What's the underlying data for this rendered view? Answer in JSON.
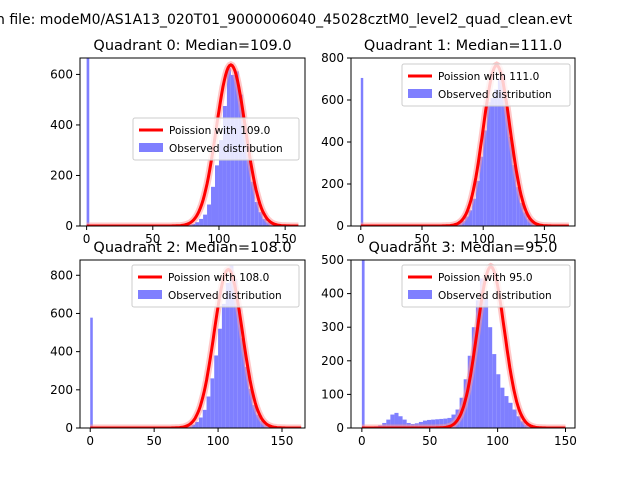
{
  "figure": {
    "suptitle": "n file: modeM0/AS1A13_020T01_9000006040_45028cztM0_level2_quad_clean.evt"
  },
  "colors": {
    "hist": "#7f7fff",
    "fit": "#ff0000",
    "fit_highlight": "#ff9999"
  },
  "chart_data": [
    {
      "type": "bar",
      "title": "Quadrant 0: Median=109.0",
      "xlim": [
        -5,
        165
      ],
      "ylim": [
        0,
        665
      ],
      "xticks": [
        0,
        50,
        100,
        150
      ],
      "yticks": [
        0,
        200,
        400,
        600
      ],
      "legend": {
        "position": "center-right",
        "fit_label": "Poission with 109.0",
        "hist_label": "Observed distribution"
      },
      "poisson_mean": 109.0,
      "poisson_peak": 638,
      "poisson_sigma": 11,
      "poisson_xrange": [
        0,
        160
      ],
      "spike": {
        "x": 0,
        "value": 665
      },
      "bins": {
        "start": 70,
        "width": 3,
        "values": [
          2,
          4,
          5,
          8,
          15,
          28,
          45,
          85,
          155,
          240,
          340,
          475,
          625,
          598,
          612,
          520,
          405,
          285,
          175,
          95,
          55,
          28,
          15,
          8,
          4,
          2
        ]
      }
    },
    {
      "type": "bar",
      "title": "Quadrant 1: Median=111.0",
      "xlim": [
        -8,
        175
      ],
      "ylim": [
        0,
        800
      ],
      "xticks": [
        0,
        50,
        100,
        150
      ],
      "yticks": [
        0,
        200,
        400,
        600,
        800
      ],
      "legend": {
        "position": "top-right",
        "fit_label": "Poission with 111.0",
        "hist_label": "Observed distribution"
      },
      "poisson_mean": 111.0,
      "poisson_peak": 765,
      "poisson_sigma": 11,
      "poisson_xrange": [
        0,
        170
      ],
      "spike": {
        "x": 0,
        "value": 705
      },
      "bins": {
        "start": 70,
        "width": 3,
        "values": [
          3,
          5,
          8,
          14,
          25,
          45,
          75,
          130,
          215,
          330,
          455,
          590,
          610,
          650,
          705,
          720,
          560,
          425,
          290,
          185,
          110,
          65,
          35,
          18,
          9,
          5,
          3,
          2
        ]
      }
    },
    {
      "type": "bar",
      "title": "Quadrant 2: Median=108.0",
      "xlim": [
        -8,
        168
      ],
      "ylim": [
        0,
        880
      ],
      "xticks": [
        0,
        50,
        100,
        150
      ],
      "yticks": [
        0,
        200,
        400,
        600,
        800
      ],
      "legend": {
        "position": "top-right",
        "fit_label": "Poission with 108.0",
        "hist_label": "Observed distribution"
      },
      "poisson_mean": 108.0,
      "poisson_peak": 830,
      "poisson_sigma": 11,
      "poisson_xrange": [
        0,
        165
      ],
      "spike": {
        "x": 0,
        "value": 578
      },
      "bins": {
        "start": 70,
        "width": 3,
        "values": [
          3,
          6,
          10,
          18,
          32,
          55,
          95,
          165,
          260,
          380,
          520,
          650,
          760,
          850,
          780,
          620,
          470,
          320,
          205,
          120,
          70,
          38,
          20,
          10,
          5,
          3
        ]
      }
    },
    {
      "type": "bar",
      "title": "Quadrant 3: Median=95.0",
      "xlim": [
        -8,
        157
      ],
      "ylim": [
        0,
        500
      ],
      "xticks": [
        0,
        50,
        100,
        150
      ],
      "yticks": [
        0,
        100,
        200,
        300,
        400,
        500
      ],
      "legend": {
        "position": "top-right",
        "fit_label": "Poission with 95.0",
        "hist_label": "Observed distribution"
      },
      "poisson_mean": 95.0,
      "poisson_peak": 480,
      "poisson_sigma": 10,
      "poisson_xrange": [
        0,
        150
      ],
      "spike": {
        "x": 0,
        "value": 500
      },
      "bins": {
        "start": 3,
        "width": 3,
        "values": [
          2,
          3,
          5,
          8,
          15,
          25,
          40,
          45,
          35,
          25,
          15,
          12,
          14,
          18,
          22,
          24,
          25,
          26,
          27,
          28,
          30,
          40,
          55,
          90,
          145,
          215,
          300,
          380,
          445,
          385,
          300,
          220,
          160,
          120,
          95,
          75,
          55,
          35,
          20,
          10,
          5,
          3,
          2,
          1,
          1,
          1,
          1,
          1
        ]
      }
    }
  ]
}
